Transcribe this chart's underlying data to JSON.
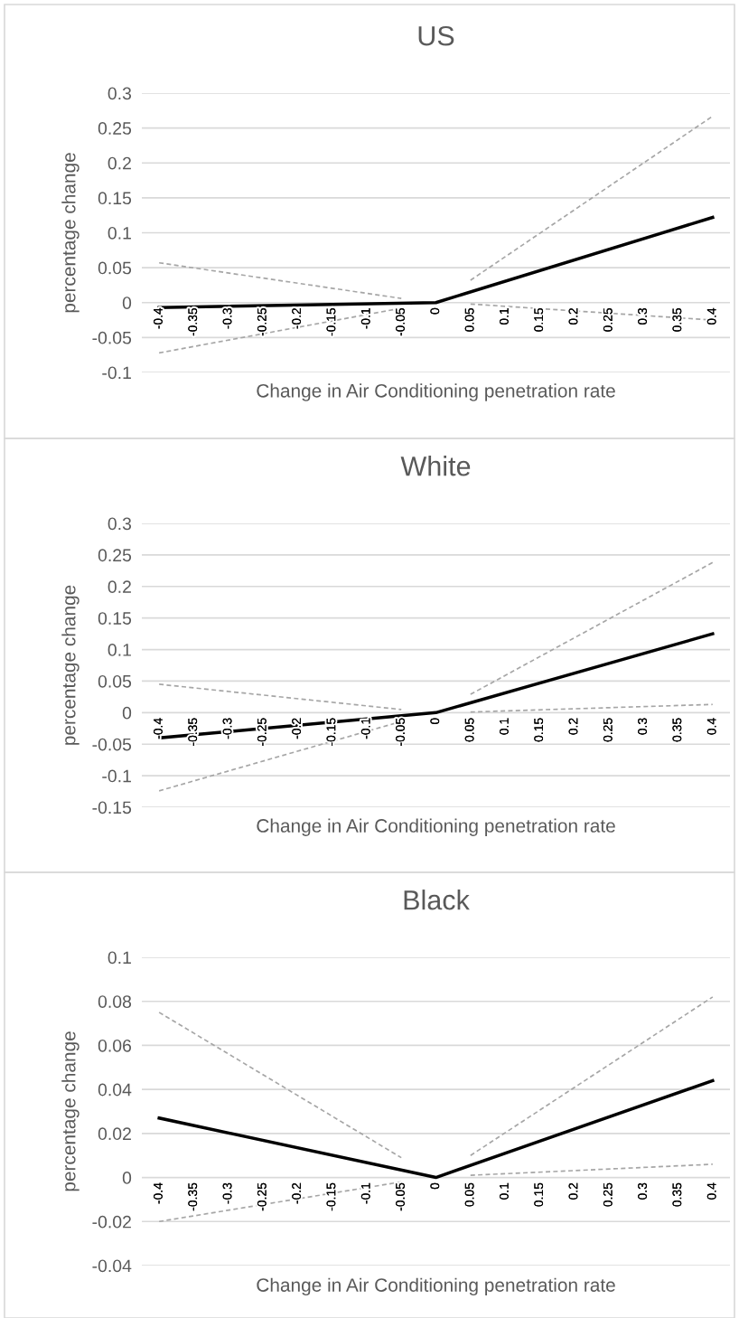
{
  "chart_data": [
    {
      "type": "line",
      "title": "US",
      "xlabel": "Change in Air Conditioning penetration rate",
      "ylabel": "percentage change",
      "xlim": [
        -0.425,
        0.425
      ],
      "xticks": [
        -0.4,
        -0.35,
        -0.3,
        -0.25,
        -0.2,
        -0.15,
        -0.1,
        -0.05,
        0,
        0.05,
        0.1,
        0.15,
        0.2,
        0.25,
        0.3,
        0.35,
        0.4
      ],
      "ylim": [
        -0.1,
        0.3
      ],
      "yticks": [
        -0.1,
        -0.05,
        0,
        0.05,
        0.1,
        0.15,
        0.2,
        0.25,
        0.3
      ],
      "grid": "y",
      "series": [
        {
          "color": "#000000",
          "line_style": "solid",
          "x": [
            -0.4,
            0,
            0.4
          ],
          "values": [
            -0.007,
            0,
            0.122
          ]
        },
        {
          "color": "#a6a6a6",
          "line_style": "dashed",
          "x": [
            -0.4,
            -0.05
          ],
          "values": [
            0.057,
            0.006
          ]
        },
        {
          "color": "#a6a6a6",
          "line_style": "dashed",
          "x": [
            -0.4,
            -0.05
          ],
          "values": [
            -0.072,
            -0.008
          ]
        },
        {
          "color": "#a6a6a6",
          "line_style": "dashed",
          "x": [
            0.05,
            0.4
          ],
          "values": [
            0.032,
            0.267
          ]
        },
        {
          "color": "#a6a6a6",
          "line_style": "dashed",
          "x": [
            0.05,
            0.4
          ],
          "values": [
            -0.002,
            -0.025
          ]
        }
      ]
    },
    {
      "type": "line",
      "title": "White",
      "xlabel": "Change in Air Conditioning penetration rate",
      "ylabel": "percentage change",
      "xlim": [
        -0.425,
        0.425
      ],
      "xticks": [
        -0.4,
        -0.35,
        -0.3,
        -0.25,
        -0.2,
        -0.15,
        -0.1,
        -0.05,
        0,
        0.05,
        0.1,
        0.15,
        0.2,
        0.25,
        0.3,
        0.35,
        0.4
      ],
      "ylim": [
        -0.15,
        0.3
      ],
      "yticks": [
        -0.15,
        -0.1,
        -0.05,
        0,
        0.05,
        0.1,
        0.15,
        0.2,
        0.25,
        0.3
      ],
      "grid": "y",
      "series": [
        {
          "color": "#000000",
          "line_style": "solid",
          "x": [
            -0.4,
            0,
            0.4
          ],
          "values": [
            -0.04,
            0,
            0.125
          ]
        },
        {
          "color": "#a6a6a6",
          "line_style": "dashed",
          "x": [
            -0.4,
            -0.05
          ],
          "values": [
            0.045,
            0.005
          ]
        },
        {
          "color": "#a6a6a6",
          "line_style": "dashed",
          "x": [
            -0.4,
            -0.05
          ],
          "values": [
            -0.124,
            -0.014
          ]
        },
        {
          "color": "#a6a6a6",
          "line_style": "dashed",
          "x": [
            0.05,
            0.4
          ],
          "values": [
            0.029,
            0.238
          ]
        },
        {
          "color": "#a6a6a6",
          "line_style": "dashed",
          "x": [
            0.05,
            0.4
          ],
          "values": [
            0.001,
            0.013
          ]
        }
      ]
    },
    {
      "type": "line",
      "title": "Black",
      "xlabel": "Change in Air Conditioning penetration rate",
      "ylabel": "percentage change",
      "xlim": [
        -0.425,
        0.425
      ],
      "xticks": [
        -0.4,
        -0.35,
        -0.3,
        -0.25,
        -0.2,
        -0.15,
        -0.1,
        -0.05,
        0,
        0.05,
        0.1,
        0.15,
        0.2,
        0.25,
        0.3,
        0.35,
        0.4
      ],
      "ylim": [
        -0.04,
        0.1
      ],
      "yticks": [
        -0.04,
        -0.02,
        0,
        0.02,
        0.04,
        0.06,
        0.08,
        0.1
      ],
      "grid": "y",
      "series": [
        {
          "color": "#000000",
          "line_style": "solid",
          "x": [
            -0.4,
            0,
            0.4
          ],
          "values": [
            0.027,
            0,
            0.044
          ]
        },
        {
          "color": "#a6a6a6",
          "line_style": "dashed",
          "x": [
            -0.4,
            -0.05
          ],
          "values": [
            0.075,
            0.009
          ]
        },
        {
          "color": "#a6a6a6",
          "line_style": "dashed",
          "x": [
            -0.4,
            -0.05
          ],
          "values": [
            -0.02,
            -0.002
          ]
        },
        {
          "color": "#a6a6a6",
          "line_style": "dashed",
          "x": [
            0.05,
            0.4
          ],
          "values": [
            0.01,
            0.082
          ]
        },
        {
          "color": "#a6a6a6",
          "line_style": "dashed",
          "x": [
            0.05,
            0.4
          ],
          "values": [
            0.001,
            0.006
          ]
        }
      ]
    }
  ]
}
